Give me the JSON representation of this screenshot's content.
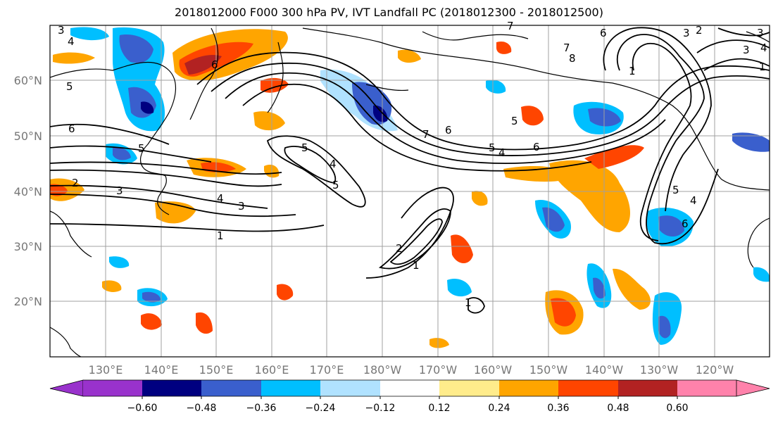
{
  "title": "2018012000 F000 300 hPa PV, IVT Landfall PC (2018012300 - 2018012500)",
  "map": {
    "lat_labels": [
      "60°N",
      "50°N",
      "40°N",
      "30°N",
      "20°N"
    ],
    "lon_labels": [
      "130°E",
      "140°E",
      "150°E",
      "160°E",
      "170°E",
      "180°W",
      "170°W",
      "160°W",
      "150°W",
      "140°W",
      "130°W",
      "120°W"
    ],
    "contour_labels": [
      "3",
      "4",
      "6",
      "5",
      "2",
      "3",
      "4",
      "3",
      "1",
      "6",
      "5",
      "5",
      "4",
      "5",
      "2",
      "1",
      "1",
      "8",
      "7",
      "6",
      "7",
      "5",
      "4",
      "6",
      "5",
      "6",
      "5",
      "4",
      "3",
      "1",
      "6",
      "3",
      "2",
      "3",
      "4",
      "1",
      "7"
    ]
  },
  "colorbar": {
    "colors": [
      "#9932cc",
      "#000080",
      "#3a5fcd",
      "#00bfff",
      "#b0e2ff",
      "#ffffff",
      "#ffec8b",
      "#ffa500",
      "#ff4500",
      "#b22222",
      "#ff82ab"
    ],
    "ticks": [
      "−0.60",
      "−0.48",
      "−0.36",
      "−0.24",
      "−0.12",
      "0.12",
      "0.24",
      "0.36",
      "0.48",
      "0.60"
    ]
  }
}
